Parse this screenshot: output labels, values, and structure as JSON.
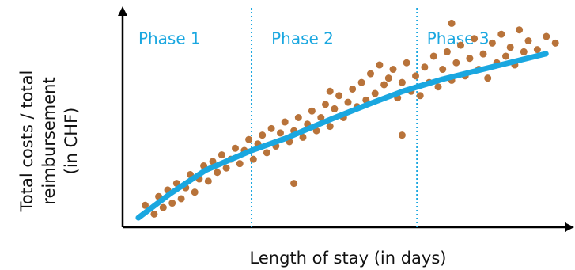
{
  "chart_data": {
    "type": "scatter",
    "x_label": "Length of stay (in days)",
    "y_label": [
      "Total costs / total",
      "reimbursement",
      "(in CHF)"
    ],
    "xlim": [
      0,
      100
    ],
    "ylim": [
      0,
      100
    ],
    "points": {
      "color": "#b8733a",
      "x": [
        5,
        7,
        8,
        9,
        10,
        11,
        12,
        13,
        14,
        15,
        16,
        17,
        18,
        19,
        20,
        21,
        22,
        23,
        24,
        25,
        26,
        27,
        28,
        29,
        30,
        31,
        32,
        33,
        34,
        35,
        36,
        37,
        38,
        39,
        40,
        41,
        42,
        43,
        44,
        45,
        46,
        47,
        48,
        49,
        50,
        51,
        52,
        53,
        54,
        55,
        56,
        57,
        58,
        59,
        60,
        61,
        62,
        63,
        64,
        65,
        66,
        67,
        68,
        69,
        70,
        71,
        72,
        73,
        74,
        75,
        76,
        77,
        78,
        79,
        80,
        81,
        82,
        83,
        84,
        85,
        86,
        87,
        88,
        89,
        90,
        92,
        94,
        96,
        38,
        62,
        46,
        73
      ],
      "values": [
        10,
        6,
        14,
        9,
        17,
        11,
        20,
        13,
        18,
        24,
        16,
        22,
        28,
        21,
        30,
        25,
        33,
        27,
        31,
        36,
        29,
        35,
        40,
        31,
        38,
        42,
        34,
        45,
        37,
        43,
        48,
        39,
        44,
        50,
        41,
        47,
        53,
        44,
        50,
        56,
        46,
        54,
        60,
        50,
        57,
        63,
        55,
        66,
        58,
        70,
        61,
        74,
        65,
        68,
        72,
        59,
        66,
        75,
        62,
        69,
        60,
        73,
        66,
        78,
        64,
        72,
        80,
        67,
        75,
        83,
        69,
        77,
        86,
        72,
        79,
        68,
        84,
        75,
        88,
        78,
        82,
        74,
        90,
        80,
        85,
        81,
        87,
        84,
        20,
        42,
        62,
        93
      ]
    },
    "trend": {
      "color": "#1aa7e0",
      "x": [
        3.5,
        10.5,
        18.4,
        28.6,
        36,
        46.5,
        55.3,
        62.3,
        71,
        81.6,
        93.9
      ],
      "values": [
        4.3,
        15.2,
        26,
        35,
        40.4,
        49.5,
        56.7,
        62.1,
        67.5,
        72.9,
        79.1
      ]
    },
    "phase_labels": [
      "Phase 1",
      "Phase 2",
      "Phase 3"
    ],
    "phase_boundaries": [
      28.6,
      65.3
    ],
    "phase_starts": [
      3.5,
      33,
      67.5
    ]
  }
}
